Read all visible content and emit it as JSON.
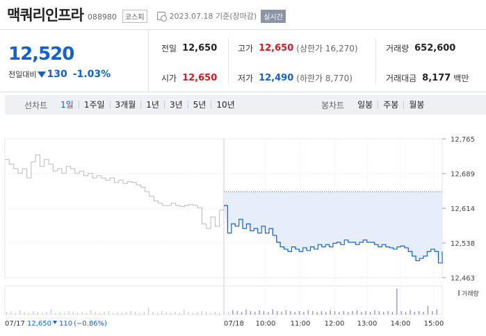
{
  "header": {
    "stock_name": "맥쿼리인프라",
    "stock_code": "088980",
    "market": "코스피",
    "date": "2023.07.18 기준(장마감)",
    "realtime": "실시간"
  },
  "summary": {
    "price": "12,520",
    "change_label": "전일대비",
    "change": "130",
    "change_pct": "-1.03%",
    "prev_close_label": "전일",
    "prev_close": "12,650",
    "high_label": "고가",
    "high": "12,650",
    "upper_limit": "(상한가 16,270)",
    "volume_label": "거래량",
    "volume": "652,600",
    "open_label": "시가",
    "open": "12,650",
    "low_label": "저가",
    "low": "12,490",
    "lower_limit": "(하한가 8,770)",
    "amount_label": "거래대금",
    "amount": "8,177",
    "amount_unit": "백만"
  },
  "toolbar": {
    "line_label": "선차트",
    "line_periods": [
      "1일",
      "1주일",
      "3개월",
      "1년",
      "3년",
      "5년",
      "10년"
    ],
    "candle_label": "봉차트",
    "candle_periods": [
      "일봉",
      "주봉",
      "월봉"
    ]
  },
  "colors": {
    "up": "#e0141e",
    "down": "#1160d8",
    "prev_line": "#bbbbbb",
    "area": "#e6eefb"
  },
  "chart_data": {
    "type": "line",
    "y_ticks": [
      "12,765",
      "12,689",
      "12,614",
      "12,538",
      "12,463"
    ],
    "ylim": [
      12463,
      12765
    ],
    "volume_label": "거래량",
    "x_ticks": [
      "07/18",
      "10:00",
      "11:00",
      "12:00",
      "13:00",
      "14:00",
      "15:00"
    ],
    "prev_day_label": "07/17",
    "prev_day_close": "12,650",
    "prev_day_change": "110",
    "prev_day_pct": "(−0.86%)",
    "reference_price": 12650,
    "series": [
      {
        "values": [
          12720,
          12710,
          12700,
          12690,
          12700,
          12680,
          12715,
          12730,
          12705,
          12720,
          12710,
          12695,
          12700,
          12690,
          12705,
          12700,
          12690,
          12695,
          12685,
          12690,
          12680,
          12685,
          12680,
          12675,
          12680,
          12670,
          12675,
          12668,
          12672,
          12670,
          12665,
          12660,
          12650,
          12640,
          12630,
          12625,
          12620,
          12620,
          12625,
          12620,
          12618,
          12620,
          12622,
          12620,
          12615,
          12580,
          12570,
          12595,
          12575,
          12610,
          12620
        ]
      },
      {
        "values": [
          12620,
          12560,
          12580,
          12575,
          12590,
          12570,
          12580,
          12565,
          12570,
          12560,
          12575,
          12560,
          12570,
          12555,
          12540,
          12530,
          12525,
          12520,
          12530,
          12525,
          12520,
          12528,
          12522,
          12530,
          12525,
          12535,
          12530,
          12535,
          12530,
          12538,
          12540,
          12535,
          12545,
          12540,
          12540,
          12535,
          12540,
          12545,
          12540,
          12540,
          12535,
          12530,
          12535,
          12530,
          12528,
          12525,
          12530,
          12532,
          12528,
          12520,
          12510,
          12500,
          12505,
          12510,
          12520,
          12525,
          12520,
          12495,
          12520
        ]
      }
    ],
    "volume": [
      3,
      4,
      2,
      5,
      3,
      2,
      4,
      3,
      2,
      3,
      6,
      2,
      3,
      2,
      4,
      3,
      2,
      3,
      2,
      5,
      3,
      2,
      3,
      4,
      2,
      3,
      2,
      3,
      4,
      3,
      2,
      3,
      8,
      3,
      2,
      4,
      3,
      2,
      3,
      2,
      6,
      3,
      2,
      3,
      4,
      3,
      2,
      3,
      2,
      4,
      3,
      5,
      4,
      3,
      6,
      4,
      3,
      5,
      4,
      3,
      6,
      4,
      3,
      5,
      4,
      3,
      4,
      3,
      5,
      4,
      3,
      4,
      3,
      5,
      4,
      3,
      4,
      3,
      4,
      5,
      3,
      4,
      3,
      5,
      4,
      3,
      4,
      3,
      30,
      4,
      3,
      5,
      3,
      4,
      3,
      10,
      4,
      6
    ]
  }
}
